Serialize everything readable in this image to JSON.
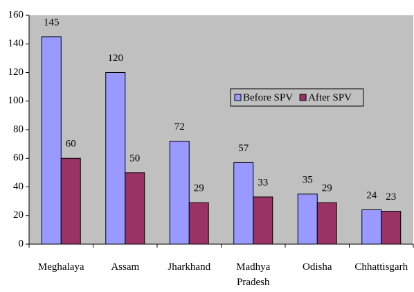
{
  "chart_data": {
    "type": "bar",
    "categories": [
      "Meghalaya",
      "Assam",
      "Jharkhand",
      "Madhya Pradesh",
      "Odisha",
      "Chhattisgarh"
    ],
    "series": [
      {
        "name": "Before SPV",
        "color": "#9999ff",
        "values": [
          145,
          120,
          72,
          57,
          35,
          24
        ]
      },
      {
        "name": "After  SPV",
        "color": "#993366",
        "values": [
          60,
          50,
          29,
          33,
          29,
          23
        ]
      }
    ],
    "ylim": [
      0,
      160
    ],
    "yticks": [
      0,
      20,
      40,
      60,
      80,
      100,
      120,
      140,
      160
    ],
    "grid": false,
    "legend": "center-right",
    "plot_background": "#c0c0c0"
  }
}
